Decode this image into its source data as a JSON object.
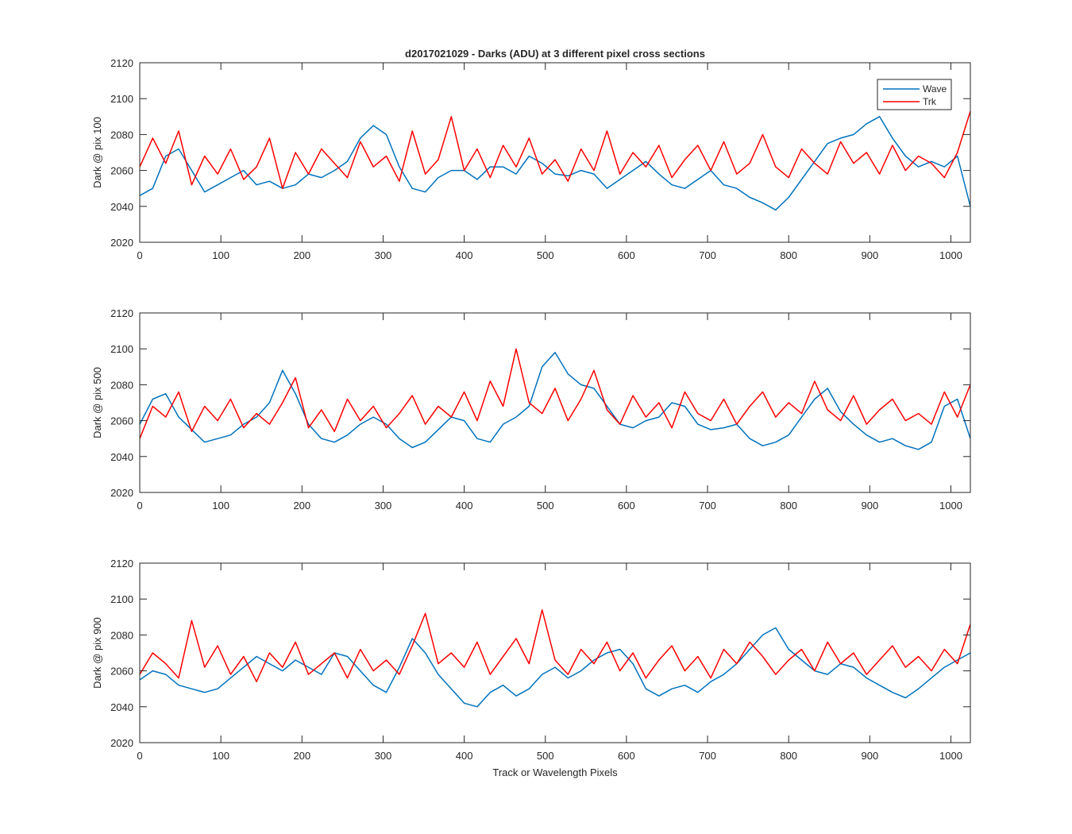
{
  "colors": {
    "wave": "#0072BD",
    "trk": "#FF0000",
    "axis": "#262626"
  },
  "chart_data": [
    {
      "type": "line",
      "title": "d2017021029 - Darks (ADU) at 3 different pixel cross sections",
      "xlabel": "",
      "ylabel": "Dark @ pix 100",
      "xlim": [
        0,
        1024
      ],
      "ylim": [
        2020,
        2120
      ],
      "xticks": [
        0,
        100,
        200,
        300,
        400,
        500,
        600,
        700,
        800,
        900,
        1000
      ],
      "yticks": [
        2020,
        2040,
        2060,
        2080,
        2100,
        2120
      ],
      "grid": false,
      "legend": {
        "location": "top-right",
        "entries": [
          "Wave",
          "Trk"
        ]
      },
      "series": [
        {
          "name": "Wave",
          "color": "#0072BD",
          "x": [
            0,
            16,
            32,
            48,
            64,
            80,
            96,
            112,
            128,
            144,
            160,
            176,
            192,
            208,
            224,
            240,
            256,
            272,
            288,
            304,
            320,
            336,
            352,
            368,
            384,
            400,
            416,
            432,
            448,
            464,
            480,
            496,
            512,
            528,
            544,
            560,
            576,
            592,
            608,
            624,
            640,
            656,
            672,
            688,
            704,
            720,
            736,
            752,
            768,
            784,
            800,
            816,
            832,
            848,
            864,
            880,
            896,
            912,
            928,
            944,
            960,
            976,
            992,
            1008,
            1024
          ],
          "values": [
            2046,
            2050,
            2068,
            2072,
            2060,
            2048,
            2052,
            2056,
            2060,
            2052,
            2054,
            2050,
            2052,
            2058,
            2056,
            2060,
            2065,
            2078,
            2085,
            2080,
            2062,
            2050,
            2048,
            2056,
            2060,
            2060,
            2055,
            2062,
            2062,
            2058,
            2068,
            2064,
            2058,
            2057,
            2060,
            2058,
            2050,
            2055,
            2060,
            2065,
            2058,
            2052,
            2050,
            2055,
            2060,
            2052,
            2050,
            2045,
            2042,
            2038,
            2045,
            2055,
            2065,
            2075,
            2078,
            2080,
            2086,
            2090,
            2078,
            2068,
            2062,
            2065,
            2062,
            2068,
            2040
          ]
        },
        {
          "name": "Trk",
          "color": "#FF0000",
          "x": [
            0,
            16,
            32,
            48,
            64,
            80,
            96,
            112,
            128,
            144,
            160,
            176,
            192,
            208,
            224,
            240,
            256,
            272,
            288,
            304,
            320,
            336,
            352,
            368,
            384,
            400,
            416,
            432,
            448,
            464,
            480,
            496,
            512,
            528,
            544,
            560,
            576,
            592,
            608,
            624,
            640,
            656,
            672,
            688,
            704,
            720,
            736,
            752,
            768,
            784,
            800,
            816,
            832,
            848,
            864,
            880,
            896,
            912,
            928,
            944,
            960,
            976,
            992,
            1008,
            1024
          ],
          "values": [
            2062,
            2078,
            2064,
            2082,
            2052,
            2068,
            2058,
            2072,
            2055,
            2062,
            2078,
            2050,
            2070,
            2058,
            2072,
            2064,
            2056,
            2076,
            2062,
            2068,
            2054,
            2082,
            2058,
            2066,
            2090,
            2060,
            2072,
            2056,
            2074,
            2062,
            2078,
            2058,
            2066,
            2054,
            2072,
            2060,
            2082,
            2058,
            2070,
            2062,
            2074,
            2056,
            2066,
            2074,
            2060,
            2076,
            2058,
            2064,
            2080,
            2062,
            2056,
            2072,
            2064,
            2058,
            2076,
            2064,
            2070,
            2058,
            2074,
            2060,
            2068,
            2064,
            2056,
            2070,
            2093
          ]
        }
      ]
    },
    {
      "type": "line",
      "title": "",
      "xlabel": "",
      "ylabel": "Dark @ pix 500",
      "xlim": [
        0,
        1024
      ],
      "ylim": [
        2020,
        2120
      ],
      "xticks": [
        0,
        100,
        200,
        300,
        400,
        500,
        600,
        700,
        800,
        900,
        1000
      ],
      "yticks": [
        2020,
        2040,
        2060,
        2080,
        2100,
        2120
      ],
      "grid": false,
      "series": [
        {
          "name": "Wave",
          "color": "#0072BD",
          "x": [
            0,
            16,
            32,
            48,
            64,
            80,
            96,
            112,
            128,
            144,
            160,
            176,
            192,
            208,
            224,
            240,
            256,
            272,
            288,
            304,
            320,
            336,
            352,
            368,
            384,
            400,
            416,
            432,
            448,
            464,
            480,
            496,
            512,
            528,
            544,
            560,
            576,
            592,
            608,
            624,
            640,
            656,
            672,
            688,
            704,
            720,
            736,
            752,
            768,
            784,
            800,
            816,
            832,
            848,
            864,
            880,
            896,
            912,
            928,
            944,
            960,
            976,
            992,
            1008,
            1024
          ],
          "values": [
            2058,
            2072,
            2075,
            2062,
            2055,
            2048,
            2050,
            2052,
            2058,
            2062,
            2070,
            2088,
            2075,
            2058,
            2050,
            2048,
            2052,
            2058,
            2062,
            2058,
            2050,
            2045,
            2048,
            2055,
            2062,
            2060,
            2050,
            2048,
            2058,
            2062,
            2068,
            2090,
            2098,
            2086,
            2080,
            2078,
            2068,
            2058,
            2056,
            2060,
            2062,
            2070,
            2068,
            2058,
            2055,
            2056,
            2058,
            2050,
            2046,
            2048,
            2052,
            2062,
            2072,
            2078,
            2065,
            2058,
            2052,
            2048,
            2050,
            2046,
            2044,
            2048,
            2068,
            2072,
            2050
          ]
        },
        {
          "name": "Trk",
          "color": "#FF0000",
          "x": [
            0,
            16,
            32,
            48,
            64,
            80,
            96,
            112,
            128,
            144,
            160,
            176,
            192,
            208,
            224,
            240,
            256,
            272,
            288,
            304,
            320,
            336,
            352,
            368,
            384,
            400,
            416,
            432,
            448,
            464,
            480,
            496,
            512,
            528,
            544,
            560,
            576,
            592,
            608,
            624,
            640,
            656,
            672,
            688,
            704,
            720,
            736,
            752,
            768,
            784,
            800,
            816,
            832,
            848,
            864,
            880,
            896,
            912,
            928,
            944,
            960,
            976,
            992,
            1008,
            1024
          ],
          "values": [
            2050,
            2068,
            2062,
            2076,
            2054,
            2068,
            2060,
            2072,
            2056,
            2064,
            2058,
            2070,
            2084,
            2056,
            2066,
            2054,
            2072,
            2060,
            2068,
            2056,
            2064,
            2074,
            2058,
            2068,
            2062,
            2076,
            2060,
            2082,
            2068,
            2100,
            2070,
            2064,
            2078,
            2060,
            2072,
            2088,
            2066,
            2058,
            2074,
            2062,
            2070,
            2056,
            2076,
            2064,
            2060,
            2072,
            2058,
            2068,
            2076,
            2062,
            2070,
            2064,
            2082,
            2066,
            2060,
            2074,
            2058,
            2066,
            2072,
            2060,
            2064,
            2058,
            2076,
            2062,
            2080
          ]
        }
      ]
    },
    {
      "type": "line",
      "title": "",
      "xlabel": "Track or Wavelength Pixels",
      "ylabel": "Dark @ pix 900",
      "xlim": [
        0,
        1024
      ],
      "ylim": [
        2020,
        2120
      ],
      "xticks": [
        0,
        100,
        200,
        300,
        400,
        500,
        600,
        700,
        800,
        900,
        1000
      ],
      "yticks": [
        2020,
        2040,
        2060,
        2080,
        2100,
        2120
      ],
      "grid": false,
      "series": [
        {
          "name": "Wave",
          "color": "#0072BD",
          "x": [
            0,
            16,
            32,
            48,
            64,
            80,
            96,
            112,
            128,
            144,
            160,
            176,
            192,
            208,
            224,
            240,
            256,
            272,
            288,
            304,
            320,
            336,
            352,
            368,
            384,
            400,
            416,
            432,
            448,
            464,
            480,
            496,
            512,
            528,
            544,
            560,
            576,
            592,
            608,
            624,
            640,
            656,
            672,
            688,
            704,
            720,
            736,
            752,
            768,
            784,
            800,
            816,
            832,
            848,
            864,
            880,
            896,
            912,
            928,
            944,
            960,
            976,
            992,
            1008,
            1024
          ],
          "values": [
            2055,
            2060,
            2058,
            2052,
            2050,
            2048,
            2050,
            2056,
            2062,
            2068,
            2064,
            2060,
            2066,
            2062,
            2058,
            2070,
            2068,
            2060,
            2052,
            2048,
            2062,
            2078,
            2070,
            2058,
            2050,
            2042,
            2040,
            2048,
            2052,
            2046,
            2050,
            2058,
            2062,
            2056,
            2060,
            2066,
            2070,
            2072,
            2064,
            2050,
            2046,
            2050,
            2052,
            2048,
            2054,
            2058,
            2064,
            2072,
            2080,
            2084,
            2072,
            2066,
            2060,
            2058,
            2064,
            2062,
            2056,
            2052,
            2048,
            2045,
            2050,
            2056,
            2062,
            2066,
            2070
          ]
        },
        {
          "name": "Trk",
          "color": "#FF0000",
          "x": [
            0,
            16,
            32,
            48,
            64,
            80,
            96,
            112,
            128,
            144,
            160,
            176,
            192,
            208,
            224,
            240,
            256,
            272,
            288,
            304,
            320,
            336,
            352,
            368,
            384,
            400,
            416,
            432,
            448,
            464,
            480,
            496,
            512,
            528,
            544,
            560,
            576,
            592,
            608,
            624,
            640,
            656,
            672,
            688,
            704,
            720,
            736,
            752,
            768,
            784,
            800,
            816,
            832,
            848,
            864,
            880,
            896,
            912,
            928,
            944,
            960,
            976,
            992,
            1008,
            1024
          ],
          "values": [
            2058,
            2070,
            2064,
            2056,
            2088,
            2062,
            2074,
            2058,
            2068,
            2054,
            2070,
            2062,
            2076,
            2058,
            2064,
            2070,
            2056,
            2072,
            2060,
            2066,
            2058,
            2074,
            2092,
            2064,
            2070,
            2062,
            2076,
            2058,
            2068,
            2078,
            2064,
            2094,
            2066,
            2058,
            2072,
            2064,
            2076,
            2060,
            2070,
            2056,
            2066,
            2074,
            2060,
            2068,
            2056,
            2072,
            2064,
            2076,
            2068,
            2058,
            2066,
            2072,
            2060,
            2076,
            2064,
            2070,
            2058,
            2066,
            2074,
            2062,
            2068,
            2060,
            2072,
            2064,
            2086
          ]
        }
      ]
    }
  ]
}
